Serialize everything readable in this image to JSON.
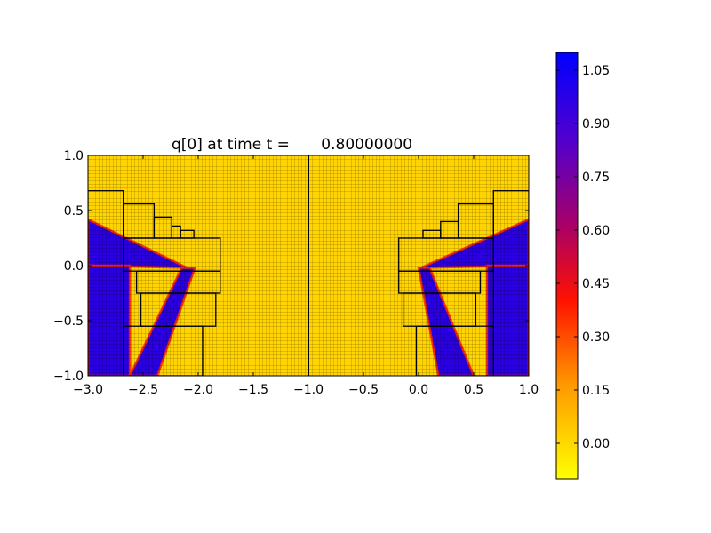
{
  "chart_data": {
    "type": "heatmap",
    "title_prefix": "q[0] at time t =",
    "title_value": "0.80000000",
    "xlim": [
      -3.0,
      1.0
    ],
    "ylim": [
      -1.0,
      1.0
    ],
    "xticks": [
      -3.0,
      -2.5,
      -2.0,
      -1.5,
      -1.0,
      -0.5,
      0.0,
      0.5,
      1.0
    ],
    "xtick_labels": [
      "−3.0",
      "−2.5",
      "−2.0",
      "−1.5",
      "−1.0",
      "−0.5",
      "0.0",
      "0.5",
      "1.0"
    ],
    "yticks": [
      1.0,
      0.5,
      0.0,
      -0.5,
      -1.0
    ],
    "ytick_labels": [
      "1.0",
      "0.5",
      "0.0",
      "−0.5",
      "−1.0"
    ],
    "colorbar": {
      "range": [
        -0.1,
        1.1
      ],
      "ticks": [
        1.05,
        0.9,
        0.75,
        0.6,
        0.45,
        0.3,
        0.15,
        0.0
      ],
      "tick_labels": [
        "1.05",
        "0.90",
        "0.75",
        "0.60",
        "0.45",
        "0.30",
        "0.15",
        "0.00"
      ],
      "colormap": [
        "#ffff00",
        "#ff9900",
        "#ff0000",
        "#aa0066",
        "#5500cc",
        "#0000ff"
      ]
    },
    "domain_divider_x": -1.0,
    "background_value": 0.0,
    "field_colors": {
      "low": "#ffd700",
      "high": "#2a00e0",
      "edge": "#ff2200"
    },
    "wedges": [
      {
        "name": "left-upper-wedge",
        "side": "left",
        "points": [
          [
            -3.0,
            0.42
          ],
          [
            -3.0,
            0.0
          ],
          [
            -2.1,
            -0.02
          ]
        ]
      },
      {
        "name": "left-lower-wedge",
        "side": "left",
        "points": [
          [
            -2.15,
            -0.02
          ],
          [
            -2.03,
            -0.02
          ],
          [
            -2.37,
            -1.0
          ],
          [
            -2.62,
            -1.0
          ]
        ]
      },
      {
        "name": "left-bottom-block",
        "side": "left",
        "points": [
          [
            -3.0,
            0.0
          ],
          [
            -2.62,
            0.0
          ],
          [
            -2.62,
            -1.0
          ],
          [
            -3.0,
            -1.0
          ]
        ]
      },
      {
        "name": "right-upper-wedge",
        "side": "right",
        "points": [
          [
            1.0,
            0.42
          ],
          [
            1.0,
            0.0
          ],
          [
            0.02,
            -0.02
          ]
        ]
      },
      {
        "name": "right-lower-wedge",
        "side": "right",
        "points": [
          [
            0.0,
            -0.02
          ],
          [
            0.1,
            -0.02
          ],
          [
            0.5,
            -1.0
          ],
          [
            0.18,
            -1.0
          ]
        ]
      },
      {
        "name": "right-bottom-block",
        "side": "right",
        "points": [
          [
            0.62,
            0.0
          ],
          [
            1.0,
            0.0
          ],
          [
            1.0,
            -1.0
          ],
          [
            0.62,
            -1.0
          ]
        ]
      }
    ],
    "refinement_patches": [
      [
        -3.0,
        0.68,
        -2.68,
        -1.0
      ],
      [
        -2.68,
        0.56,
        -2.4,
        0.25
      ],
      [
        -2.4,
        0.44,
        -2.24,
        0.25
      ],
      [
        -2.24,
        0.36,
        -2.16,
        0.25
      ],
      [
        -2.16,
        0.32,
        -2.04,
        0.25
      ],
      [
        -2.68,
        0.25,
        -1.8,
        -0.05
      ],
      [
        -2.56,
        -0.05,
        -1.8,
        -0.25
      ],
      [
        -2.52,
        -0.25,
        -1.84,
        -0.55
      ],
      [
        -2.68,
        -0.55,
        -1.96,
        -1.0
      ],
      [
        0.68,
        0.68,
        1.0,
        -1.0
      ],
      [
        0.36,
        0.56,
        0.68,
        0.25
      ],
      [
        0.2,
        0.4,
        0.36,
        0.25
      ],
      [
        0.04,
        0.32,
        0.2,
        0.25
      ],
      [
        -0.18,
        0.25,
        0.68,
        -0.05
      ],
      [
        -0.18,
        -0.05,
        0.56,
        -0.25
      ],
      [
        -0.14,
        -0.25,
        0.52,
        -0.55
      ],
      [
        -0.02,
        -0.55,
        0.68,
        -1.0
      ]
    ]
  }
}
